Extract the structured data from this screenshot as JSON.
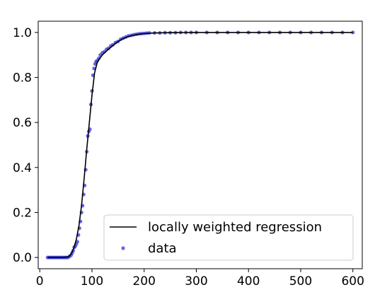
{
  "chart_data": {
    "type": "scatter",
    "title": "",
    "xlabel": "",
    "ylabel": "",
    "xlim": [
      -3,
      618
    ],
    "ylim": [
      -0.05,
      1.05
    ],
    "xticks": [
      0,
      100,
      200,
      300,
      400,
      500,
      600
    ],
    "yticks": [
      0.0,
      0.2,
      0.4,
      0.6,
      0.8,
      1.0
    ],
    "xtick_labels": [
      "0",
      "100",
      "200",
      "300",
      "400",
      "500",
      "600"
    ],
    "ytick_labels": [
      "0.0",
      "0.2",
      "0.4",
      "0.6",
      "0.8",
      "1.0"
    ],
    "grid": false,
    "legend_position": "lower-right",
    "series": [
      {
        "name": "locally weighted regression",
        "kind": "line",
        "color": "#000000",
        "x": [
          15,
          30,
          45,
          55,
          60,
          65,
          70,
          75,
          80,
          85,
          90,
          95,
          100,
          105,
          110,
          115,
          120,
          130,
          140,
          150,
          160,
          170,
          180,
          190,
          200,
          220,
          250,
          300,
          400,
          500,
          600
        ],
        "y": [
          0.0,
          0.0,
          0.0,
          0.003,
          0.015,
          0.04,
          0.08,
          0.14,
          0.23,
          0.35,
          0.48,
          0.6,
          0.72,
          0.82,
          0.865,
          0.885,
          0.9,
          0.922,
          0.942,
          0.96,
          0.973,
          0.982,
          0.988,
          0.992,
          0.995,
          0.998,
          0.999,
          1.0,
          1.0,
          1.0,
          1.0
        ]
      },
      {
        "name": "data",
        "kind": "scatter",
        "color": "#3333dd",
        "x": [
          15,
          18,
          21,
          24,
          27,
          30,
          33,
          36,
          39,
          42,
          45,
          48,
          51,
          54,
          57,
          60,
          62,
          64,
          66,
          68,
          70,
          72,
          74,
          76,
          78,
          80,
          82,
          84,
          86,
          88,
          90,
          92,
          94,
          96,
          98,
          100,
          102,
          104,
          106,
          108,
          110,
          113,
          116,
          120,
          124,
          128,
          132,
          136,
          140,
          145,
          150,
          155,
          160,
          165,
          170,
          175,
          180,
          185,
          190,
          195,
          200,
          205,
          210,
          220,
          230,
          240,
          250,
          260,
          270,
          280,
          290,
          300,
          320,
          340,
          360,
          380,
          400,
          420,
          440,
          460,
          480,
          500,
          520,
          540,
          560,
          580,
          600
        ],
        "y": [
          0.0,
          0.0,
          0.0,
          0.0,
          0.0,
          0.0,
          0.0,
          0.0,
          0.0,
          0.0,
          0.0,
          0.0,
          0.0,
          0.0,
          0.005,
          0.01,
          0.02,
          0.03,
          0.045,
          0.05,
          0.06,
          0.07,
          0.1,
          0.13,
          0.16,
          0.2,
          0.23,
          0.28,
          0.32,
          0.39,
          0.47,
          0.54,
          0.56,
          0.57,
          0.68,
          0.74,
          0.81,
          0.84,
          0.86,
          0.87,
          0.875,
          0.885,
          0.9,
          0.91,
          0.915,
          0.925,
          0.93,
          0.94,
          0.945,
          0.955,
          0.96,
          0.97,
          0.975,
          0.98,
          0.985,
          0.987,
          0.99,
          0.992,
          0.994,
          0.995,
          0.996,
          0.997,
          0.998,
          0.998,
          0.998,
          0.999,
          0.999,
          0.999,
          1.0,
          1.0,
          1.0,
          1.0,
          1.0,
          1.0,
          1.0,
          1.0,
          1.0,
          1.0,
          1.0,
          1.0,
          1.0,
          1.0,
          1.0,
          1.0,
          1.0,
          1.0,
          1.0
        ]
      }
    ]
  }
}
